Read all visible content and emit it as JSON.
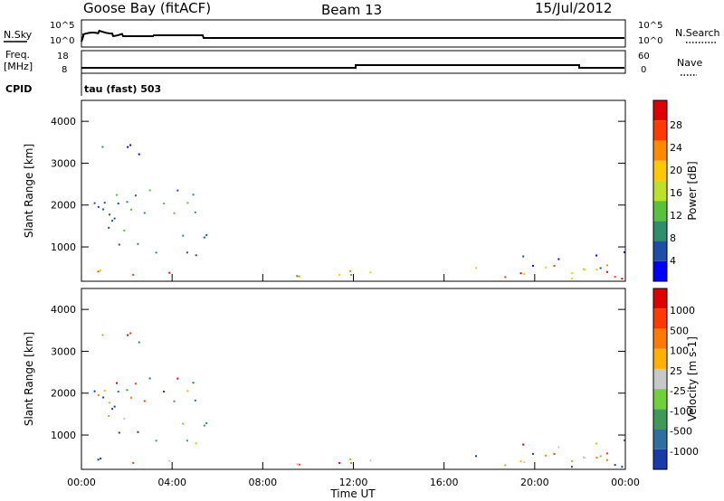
{
  "header": {
    "station": "Goose Bay (fitACF)",
    "beam": "Beam 13",
    "date": "15/Jul/2012"
  },
  "status_panels": {
    "nsky_label": "N.Sky",
    "nsearch_label": "N.Search",
    "nsky_ticks": [
      "10^5",
      "10^0"
    ],
    "nsearch_ticks": [
      "10^5",
      "10^0"
    ],
    "freq_label_1": "Freq.",
    "freq_label_2": "[MHz]",
    "freq_ticks": [
      "18",
      "8"
    ],
    "nave_label": "Nave",
    "nave_ticks": [
      "60",
      "0"
    ],
    "cpid_label": "CPID",
    "cpid_text": "tau (fast) 503"
  },
  "chart_data": [
    {
      "type": "heatmap",
      "name": "power",
      "ylabel": "Slant Range [km]",
      "yticks": [
        "4000",
        "3000",
        "2000",
        "1000"
      ],
      "ylim": [
        180,
        4500
      ],
      "colorbar_label": "Power [dB]",
      "colorbar_ticks": [
        "28",
        "24",
        "20",
        "16",
        "12",
        "8",
        "4"
      ],
      "colorbar_colors": [
        "#0000ff",
        "#1f4ea8",
        "#2f8f6a",
        "#58c23a",
        "#bfe02a",
        "#ffc800",
        "#ff8a00",
        "#ff3a00",
        "#e00000"
      ]
    },
    {
      "type": "heatmap",
      "name": "velocity",
      "ylabel": "Slant Range [km]",
      "yticks": [
        "4000",
        "3000",
        "2000",
        "1000"
      ],
      "ylim": [
        180,
        4500
      ],
      "colorbar_label": "Velocity [m s-1]",
      "colorbar_ticks": [
        "1000",
        "500",
        "100",
        "25",
        "-25",
        "-100",
        "-500",
        "-1000"
      ],
      "colorbar_colors": [
        "#1a3aa8",
        "#2f6fa0",
        "#3f9a5a",
        "#6fd03a",
        "#c8c8c8",
        "#ffb000",
        "#ff7a00",
        "#ff3a00",
        "#e00000"
      ]
    }
  ],
  "x_axis": {
    "ticks": [
      "00:00",
      "04:00",
      "08:00",
      "12:00",
      "16:00",
      "20:00",
      "00:00"
    ],
    "label": "Time UT"
  }
}
